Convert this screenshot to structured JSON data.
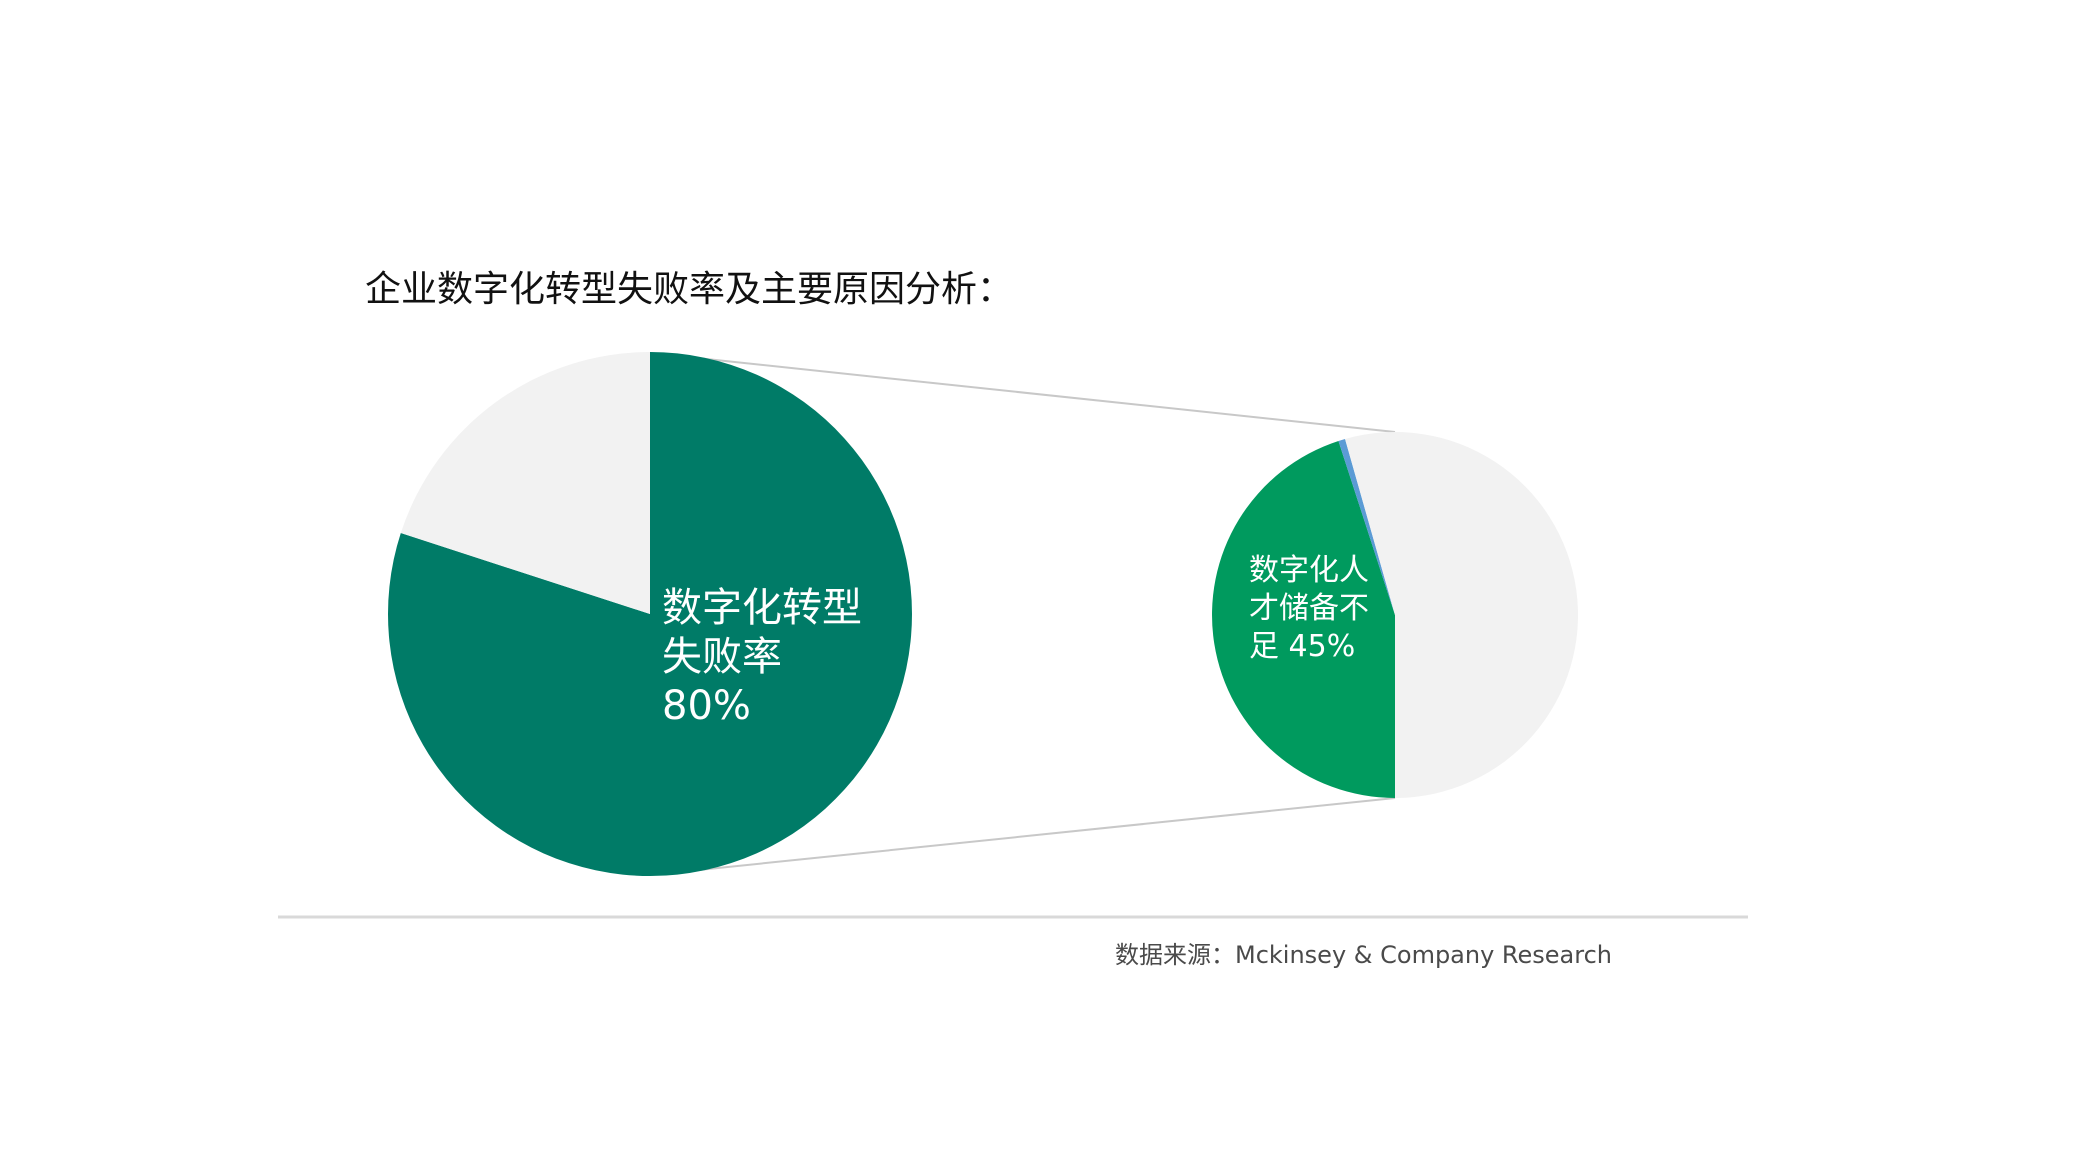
{
  "chart_data": {
    "type": "pie",
    "title": "企业数字化转型失败率及主要原因分析：",
    "source": "数据来源：Mckinsey & Company Research",
    "pies": [
      {
        "slices": [
          {
            "value": 80,
            "color": "#007B67",
            "label_lines": [
              "数字化转型",
              "失败率",
              "80%"
            ]
          },
          {
            "value": 20,
            "color": "#F2F2F2",
            "label_lines": []
          }
        ]
      },
      {
        "slices": [
          {
            "value": 45,
            "color": "#009A5E",
            "label_lines": [
              "数字化人",
              "才储备不",
              "足 45%"
            ]
          },
          {
            "value": 0.6,
            "color": "#5B9BD5",
            "label_lines": []
          },
          {
            "value": 54.4,
            "color": "#F2F2F2",
            "label_lines": []
          }
        ]
      }
    ],
    "colors": {
      "connector": "#C8C8C8",
      "divider": "#D9D9D9"
    }
  }
}
